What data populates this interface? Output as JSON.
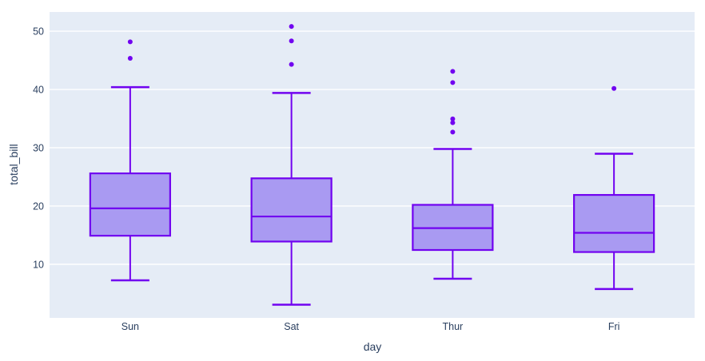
{
  "chart_data": {
    "type": "box",
    "title": "",
    "xlabel": "day",
    "ylabel": "total_bill",
    "categories": [
      "Sun",
      "Sat",
      "Thur",
      "Fri"
    ],
    "yticks": [
      10,
      20,
      30,
      40,
      50
    ],
    "ylim": [
      0.8,
      53.3
    ],
    "grid": true,
    "legend": "none",
    "orientation": "vertical",
    "series": [
      {
        "name": "Sun",
        "min": 7.25,
        "q1": 14.9,
        "median": 19.6,
        "q3": 25.6,
        "max": 40.4,
        "outliers": [
          45.35,
          48.17
        ]
      },
      {
        "name": "Sat",
        "min": 3.07,
        "q1": 13.9,
        "median": 18.2,
        "q3": 24.75,
        "max": 39.4,
        "outliers": [
          44.3,
          48.33,
          50.81
        ]
      },
      {
        "name": "Thur",
        "min": 7.51,
        "q1": 12.45,
        "median": 16.2,
        "q3": 20.2,
        "max": 29.8,
        "outliers": [
          32.68,
          34.3,
          34.95,
          41.19,
          43.11
        ]
      },
      {
        "name": "Fri",
        "min": 5.75,
        "q1": 12.1,
        "median": 15.4,
        "q3": 21.9,
        "max": 28.97,
        "outliers": [
          40.17
        ]
      }
    ],
    "colors": {
      "line": "#7103f0",
      "fill": "#a99af2",
      "plot_bg": "#e5ecf6",
      "grid": "#ffffff",
      "text": "#2a3f5f",
      "paper_bg": "#ffffff"
    }
  }
}
